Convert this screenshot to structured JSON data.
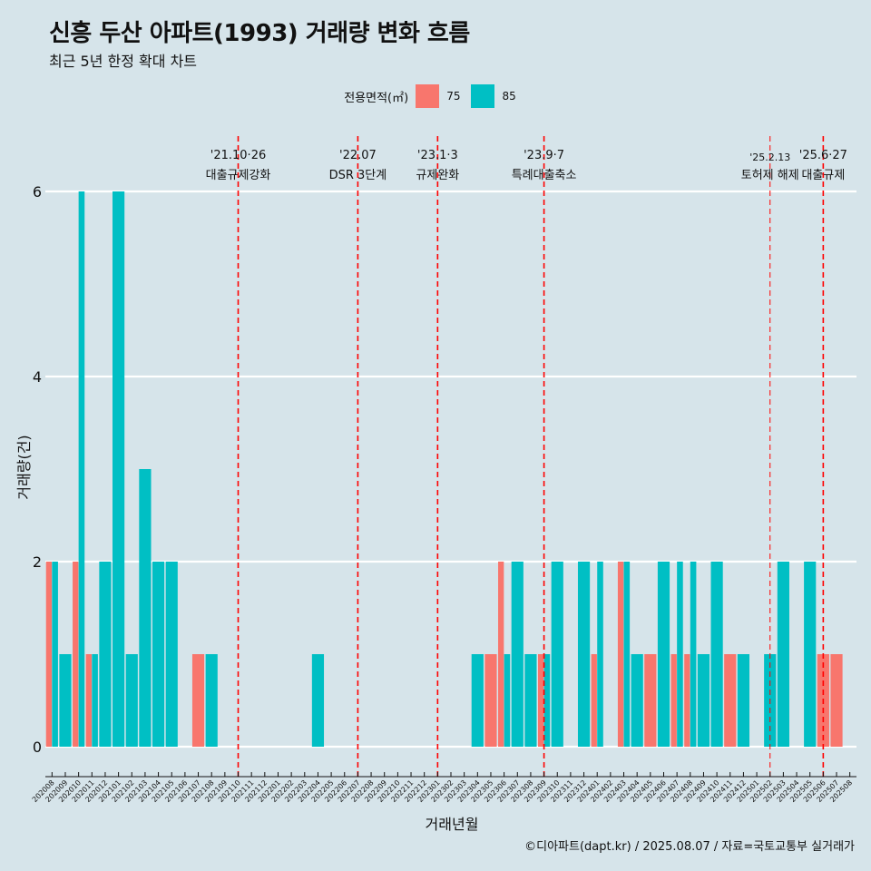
{
  "header": {
    "title": "신흥 두산 아파트(1993) 거래량 변화 흐름",
    "subtitle": "최근 5년 한정 확대 차트"
  },
  "legend": {
    "title": "전용면적(㎡)",
    "items": [
      {
        "label": "75",
        "color": "#F8766D"
      },
      {
        "label": "85",
        "color": "#00BFC4"
      }
    ]
  },
  "caption": "©디아파트(dapt.kr) / 2025.08.07 / 자료=국토교통부 실거래가",
  "chart_data": {
    "type": "bar",
    "xlabel": "거래년월",
    "ylabel": "거래량(건)",
    "ylim": [
      0,
      6
    ],
    "yticks": [
      0,
      2,
      4,
      6
    ],
    "categories": [
      "202008",
      "202009",
      "202010",
      "202011",
      "202012",
      "202101",
      "202102",
      "202103",
      "202104",
      "202105",
      "202106",
      "202107",
      "202108",
      "202109",
      "202110",
      "202111",
      "202112",
      "202201",
      "202202",
      "202203",
      "202204",
      "202205",
      "202206",
      "202207",
      "202208",
      "202209",
      "202210",
      "202211",
      "202212",
      "202301",
      "202302",
      "202303",
      "202304",
      "202305",
      "202306",
      "202307",
      "202308",
      "202309",
      "202310",
      "202311",
      "202312",
      "202401",
      "202402",
      "202403",
      "202404",
      "202405",
      "202406",
      "202407",
      "202408",
      "202409",
      "202410",
      "202411",
      "202412",
      "202501",
      "202502",
      "202503",
      "202504",
      "202505",
      "202506",
      "202507",
      "202508"
    ],
    "series": [
      {
        "name": "75",
        "color": "#F8766D",
        "values": [
          2,
          0,
          2,
          1,
          0,
          0,
          0,
          0,
          0,
          0,
          0,
          1,
          0,
          0,
          0,
          0,
          0,
          0,
          0,
          0,
          0,
          0,
          0,
          0,
          0,
          0,
          0,
          0,
          0,
          0,
          0,
          0,
          0,
          1,
          2,
          0,
          0,
          1,
          0,
          0,
          0,
          1,
          0,
          2,
          0,
          1,
          0,
          1,
          1,
          0,
          0,
          1,
          0,
          0,
          0,
          0,
          0,
          0,
          1,
          1,
          0
        ]
      },
      {
        "name": "85",
        "color": "#00BFC4",
        "values": [
          2,
          1,
          6,
          1,
          2,
          6,
          1,
          3,
          2,
          2,
          0,
          0,
          1,
          0,
          0,
          0,
          0,
          0,
          0,
          0,
          1,
          0,
          0,
          0,
          0,
          0,
          0,
          0,
          0,
          0,
          0,
          0,
          1,
          0,
          1,
          2,
          1,
          1,
          2,
          0,
          2,
          2,
          0,
          2,
          1,
          0,
          2,
          2,
          2,
          1,
          2,
          0,
          1,
          0,
          1,
          2,
          0,
          2,
          0,
          0,
          0
        ]
      }
    ],
    "annotations": [
      {
        "category": "202110",
        "date": "'21.10·26",
        "label": "대출규제강화"
      },
      {
        "category": "202207",
        "date": "'22.07",
        "label": "DSR 3단계"
      },
      {
        "category": "202301",
        "date": "'23.1·3",
        "label": "규제완화"
      },
      {
        "category": "202309",
        "date": "'23.9·7",
        "label": "특례대출축소"
      },
      {
        "category": "202502",
        "date": "'25.2.13",
        "label": "토허제 해제"
      },
      {
        "category": "202506",
        "date": "'25.6·27",
        "label": "대출규제"
      }
    ]
  }
}
